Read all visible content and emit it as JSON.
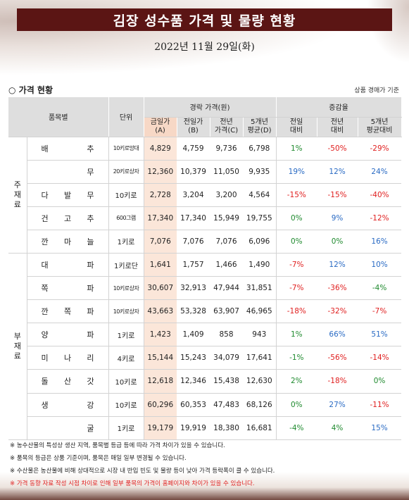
{
  "title": "김장 성수품 가격 및 물량 현황",
  "date": "2022년 11월 29일(화)",
  "section_title": "○ 가격 현황",
  "basis": "상품 경매가 기준",
  "header": {
    "item": "품목별",
    "unit": "단위",
    "price_group": "경락 가격(원)",
    "change_group": "증감율",
    "today": [
      "금일가",
      "(A)"
    ],
    "yesterday": [
      "전일가",
      "(B)"
    ],
    "last_year": [
      "전년",
      "가격(C)"
    ],
    "avg5": [
      "5개년",
      "평균(D)"
    ],
    "vs_yesterday": [
      "전일",
      "대비"
    ],
    "vs_last_year": [
      "전년",
      "대비"
    ],
    "vs_avg5": [
      "5개년",
      "평균대비"
    ]
  },
  "groups": [
    {
      "label": [
        "주",
        "재",
        "료"
      ]
    },
    {
      "label": [
        "부",
        "재",
        "료"
      ]
    }
  ],
  "rows": [
    {
      "item": [
        "배",
        "추"
      ],
      "unit": "10키로망대",
      "today": "4,829",
      "yesterday": "4,759",
      "last_year": "9,736",
      "avg5": "6,798",
      "d1": "1%",
      "d2": "-50%",
      "d3": "-29%",
      "c1": "pos",
      "c2": "neg",
      "c3": "neg"
    },
    {
      "item": [
        "",
        "무"
      ],
      "unit": "20키로상자",
      "today": "12,360",
      "yesterday": "10,379",
      "last_year": "11,050",
      "avg5": "9,935",
      "d1": "19%",
      "d2": "12%",
      "d3": "24%",
      "c1": "blu",
      "c2": "blu",
      "c3": "blu"
    },
    {
      "item": [
        "다",
        "발",
        "무"
      ],
      "unit": "10키로",
      "today": "2,728",
      "yesterday": "3,204",
      "last_year": "3,200",
      "avg5": "4,564",
      "d1": "-15%",
      "d2": "-15%",
      "d3": "-40%",
      "c1": "neg",
      "c2": "neg",
      "c3": "neg"
    },
    {
      "item": [
        "건",
        "고",
        "추"
      ],
      "unit": "600그램",
      "today": "17,340",
      "yesterday": "17,340",
      "last_year": "15,949",
      "avg5": "19,755",
      "d1": "0%",
      "d2": "9%",
      "d3": "-12%",
      "c1": "pos",
      "c2": "blu",
      "c3": "neg"
    },
    {
      "item": [
        "깐",
        "마",
        "늘"
      ],
      "unit": "1키로",
      "today": "7,076",
      "yesterday": "7,076",
      "last_year": "7,076",
      "avg5": "6,096",
      "d1": "0%",
      "d2": "0%",
      "d3": "16%",
      "c1": "pos",
      "c2": "pos",
      "c3": "blu"
    },
    {
      "item": [
        "대",
        "파"
      ],
      "unit": "1키로단",
      "today": "1,641",
      "yesterday": "1,757",
      "last_year": "1,466",
      "avg5": "1,490",
      "d1": "-7%",
      "d2": "12%",
      "d3": "10%",
      "c1": "neg",
      "c2": "blu",
      "c3": "blu"
    },
    {
      "item": [
        "쪽",
        "파"
      ],
      "unit": "10키로상자",
      "today": "30,607",
      "yesterday": "32,913",
      "last_year": "47,944",
      "avg5": "31,851",
      "d1": "-7%",
      "d2": "-36%",
      "d3": "-4%",
      "c1": "neg",
      "c2": "neg",
      "c3": "pos"
    },
    {
      "item": [
        "깐",
        "쪽",
        "파"
      ],
      "unit": "10키로상자",
      "today": "43,663",
      "yesterday": "53,328",
      "last_year": "63,907",
      "avg5": "46,965",
      "d1": "-18%",
      "d2": "-32%",
      "d3": "-7%",
      "c1": "neg",
      "c2": "neg",
      "c3": "neg"
    },
    {
      "item": [
        "양",
        "파"
      ],
      "unit": "1키로",
      "today": "1,423",
      "yesterday": "1,409",
      "last_year": "858",
      "avg5": "943",
      "d1": "1%",
      "d2": "66%",
      "d3": "51%",
      "c1": "pos",
      "c2": "blu",
      "c3": "blu"
    },
    {
      "item": [
        "미",
        "나",
        "리"
      ],
      "unit": "4키로",
      "today": "15,144",
      "yesterday": "15,243",
      "last_year": "34,079",
      "avg5": "17,641",
      "d1": "-1%",
      "d2": "-56%",
      "d3": "-14%",
      "c1": "pos",
      "c2": "neg",
      "c3": "neg"
    },
    {
      "item": [
        "돌",
        "산",
        "갓"
      ],
      "unit": "10키로",
      "today": "12,618",
      "yesterday": "12,346",
      "last_year": "15,438",
      "avg5": "12,630",
      "d1": "2%",
      "d2": "-18%",
      "d3": "0%",
      "c1": "pos",
      "c2": "neg",
      "c3": "pos"
    },
    {
      "item": [
        "생",
        "강"
      ],
      "unit": "10키로",
      "today": "60,296",
      "yesterday": "60,353",
      "last_year": "47,483",
      "avg5": "68,126",
      "d1": "0%",
      "d2": "27%",
      "d3": "-11%",
      "c1": "pos",
      "c2": "blu",
      "c3": "neg"
    },
    {
      "item": [
        "",
        "굴"
      ],
      "unit": "1키로",
      "today": "19,179",
      "yesterday": "19,919",
      "last_year": "18,380",
      "avg5": "16,681",
      "d1": "-4%",
      "d2": "4%",
      "d3": "15%",
      "c1": "pos",
      "c2": "pos",
      "c3": "blu"
    }
  ],
  "notes": [
    "※ 농수산물의 특성상 생산 지역, 품목별 등급 등에 따라 가격 차이가 있을 수 있습니다.",
    "※ 품목의 등급은 상품 기준이며, 품목은 매일 일부 변경될 수 있습니다.",
    "※ 수산물은 농산물에 비해 상대적으로 시장 내 반입 빈도 및 물량 등이 낮아 가격 등락폭이 클 수 있습니다.",
    "※ 가격 동향 자료 작성 시점 차이로 인해 일부 품목의 가격이 홈페이지와 차이가 있을 수 있습니다."
  ],
  "colors": {
    "title_bg": "#5b1514",
    "header_bg": "#dedede",
    "today_bg": "#fbe6d9",
    "positive": "#1f8a2e",
    "negative": "#e02020",
    "increase": "#2a6bc4"
  }
}
